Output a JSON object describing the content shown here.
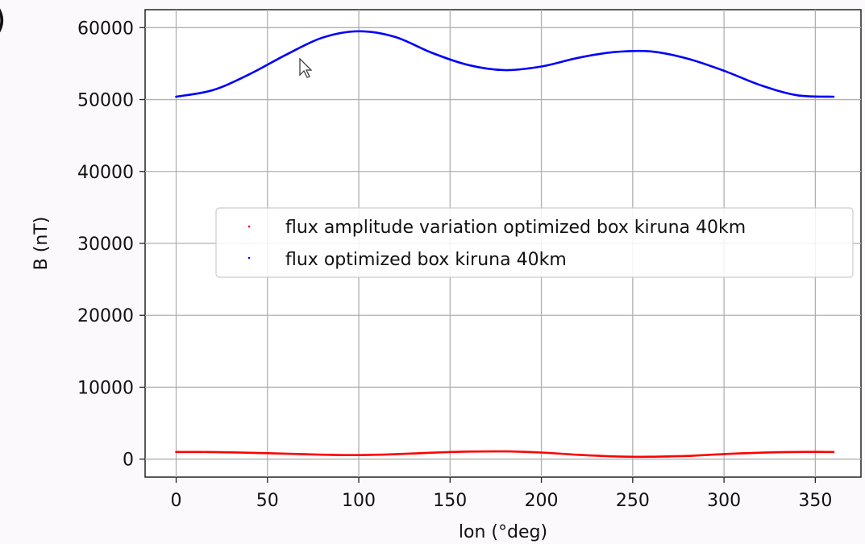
{
  "panel_label": ")",
  "chart_data": {
    "type": "line",
    "xlabel": "lon (°deg)",
    "ylabel": "B (nT)",
    "xlim": [
      -17,
      375
    ],
    "ylim": [
      -2500,
      62500
    ],
    "xticks": [
      0,
      50,
      100,
      150,
      200,
      250,
      300,
      350
    ],
    "yticks": [
      0,
      10000,
      20000,
      30000,
      40000,
      50000,
      60000
    ],
    "grid": true,
    "legend_position": "center-right",
    "series": [
      {
        "name": "flux amplitude variation optimized box kiruna 40km",
        "color": "#ff0000",
        "x": [
          0,
          20,
          40,
          60,
          80,
          100,
          120,
          140,
          160,
          180,
          200,
          220,
          240,
          260,
          280,
          300,
          320,
          340,
          360
        ],
        "y": [
          1000,
          980,
          880,
          760,
          620,
          560,
          680,
          900,
          1050,
          1080,
          920,
          600,
          380,
          330,
          450,
          700,
          900,
          1000,
          1000
        ]
      },
      {
        "name": "flux optimized box kiruna 40km",
        "color": "#0000ff",
        "x": [
          0,
          20,
          40,
          60,
          80,
          100,
          120,
          140,
          160,
          180,
          200,
          220,
          240,
          260,
          280,
          300,
          320,
          340,
          360
        ],
        "y": [
          50400,
          51300,
          53500,
          56200,
          58600,
          59500,
          58700,
          56500,
          54800,
          54100,
          54600,
          55800,
          56600,
          56700,
          55700,
          54000,
          52000,
          50600,
          50400
        ]
      }
    ]
  }
}
